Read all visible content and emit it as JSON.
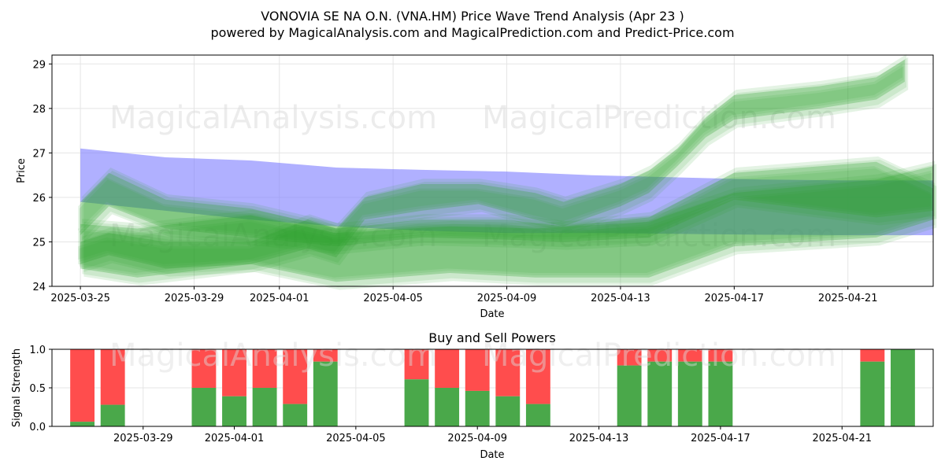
{
  "header": {
    "title": "VONOVIA SE NA O.N. (VNA.HM) Price Wave Trend Analysis (Apr 23 )",
    "subtitle": "powered by MagicalAnalysis.com and MagicalPrediction.com and Predict-Price.com"
  },
  "watermarks": [
    "MagicalAnalysis.com",
    "MagicalPrediction.com"
  ],
  "colors": {
    "green": "#2ca02c",
    "blue": "#7f7fff",
    "buy": "#4aa84a",
    "sell": "#ff4d4d"
  },
  "chart_data": [
    {
      "type": "area",
      "title": "",
      "xlabel": "Date",
      "ylabel": "Price",
      "x_range": [
        "2025-03-24",
        "2025-04-24"
      ],
      "ylim": [
        24,
        29.2
      ],
      "y_ticks": [
        24,
        25,
        26,
        27,
        28,
        29
      ],
      "x_ticks": [
        "2025-03-25",
        "2025-03-29",
        "2025-04-01",
        "2025-04-05",
        "2025-04-09",
        "2025-04-13",
        "2025-04-17",
        "2025-04-21"
      ],
      "grid": true,
      "blue_band": {
        "x": [
          "2025-03-25",
          "2025-03-28",
          "2025-03-31",
          "2025-04-03",
          "2025-04-06",
          "2025-04-09",
          "2025-04-12",
          "2025-04-15",
          "2025-04-18",
          "2025-04-21",
          "2025-04-24"
        ],
        "upper": [
          27.1,
          26.9,
          26.83,
          26.67,
          26.62,
          26.58,
          26.5,
          26.45,
          26.4,
          26.38,
          26.38
        ],
        "lower": [
          25.9,
          25.7,
          25.5,
          25.35,
          25.25,
          25.2,
          25.2,
          25.18,
          25.16,
          25.15,
          25.15
        ]
      },
      "green_bands": [
        {
          "x": [
            "2025-03-25",
            "2025-03-26",
            "2025-03-28",
            "2025-03-31",
            "2025-04-03",
            "2025-04-06",
            "2025-04-09",
            "2025-04-11",
            "2025-04-14",
            "2025-04-17",
            "2025-04-22",
            "2025-04-24"
          ],
          "upper": [
            25.9,
            26.55,
            25.95,
            25.75,
            25.3,
            25.5,
            25.5,
            25.35,
            25.55,
            26.55,
            26.8,
            26.2
          ],
          "lower": [
            25.15,
            25.8,
            25.3,
            25.1,
            24.9,
            25.1,
            25.05,
            25.0,
            25.1,
            25.95,
            25.55,
            25.7
          ]
        },
        {
          "x": [
            "2025-03-25",
            "2025-03-26",
            "2025-03-28",
            "2025-03-31",
            "2025-04-02",
            "2025-04-03",
            "2025-04-04",
            "2025-04-06",
            "2025-04-08",
            "2025-04-10",
            "2025-04-11",
            "2025-04-13",
            "2025-04-14",
            "2025-04-15",
            "2025-04-16",
            "2025-04-17",
            "2025-04-20",
            "2025-04-22",
            "2025-04-23"
          ],
          "upper": [
            25.0,
            25.2,
            25.0,
            25.0,
            25.5,
            25.3,
            26.0,
            26.3,
            26.3,
            26.1,
            25.9,
            26.3,
            26.6,
            27.1,
            27.8,
            28.3,
            28.5,
            28.7,
            29.1
          ],
          "lower": [
            24.5,
            24.7,
            24.4,
            24.5,
            24.85,
            24.65,
            25.5,
            25.7,
            25.85,
            25.5,
            25.35,
            25.8,
            26.1,
            26.7,
            27.35,
            27.75,
            28.0,
            28.2,
            28.6
          ]
        },
        {
          "x": [
            "2025-03-25",
            "2025-03-27",
            "2025-03-31",
            "2025-04-03",
            "2025-04-07",
            "2025-04-10",
            "2025-04-14",
            "2025-04-17",
            "2025-04-22",
            "2025-04-24"
          ],
          "upper": [
            25.4,
            25.3,
            25.6,
            25.2,
            25.35,
            25.3,
            25.45,
            26.1,
            26.4,
            26.7
          ],
          "lower": [
            24.4,
            24.2,
            24.5,
            24.1,
            24.3,
            24.2,
            24.2,
            24.9,
            25.1,
            25.5
          ]
        }
      ]
    },
    {
      "type": "bar",
      "title": "Buy and Sell Powers",
      "xlabel": "Date",
      "ylabel": "Signal Strength",
      "ylim": [
        0,
        1
      ],
      "y_ticks": [
        "0.0",
        "0.5",
        "1.0"
      ],
      "x_ticks": [
        "2025-03-29",
        "2025-04-01",
        "2025-04-05",
        "2025-04-09",
        "2025-04-13",
        "2025-04-17",
        "2025-04-21"
      ],
      "x_range": [
        "2025-03-26",
        "2025-04-24"
      ],
      "series": [
        {
          "name": "Buy",
          "color": "#4aa84a"
        },
        {
          "name": "Sell",
          "color": "#ff4d4d"
        }
      ],
      "bars": [
        {
          "date": "2025-03-27",
          "buy": 0.06
        },
        {
          "date": "2025-03-28",
          "buy": 0.28
        },
        {
          "date": "2025-03-31",
          "buy": 0.5
        },
        {
          "date": "2025-04-01",
          "buy": 0.39
        },
        {
          "date": "2025-04-02",
          "buy": 0.5
        },
        {
          "date": "2025-04-03",
          "buy": 0.29
        },
        {
          "date": "2025-04-04",
          "buy": 0.84
        },
        {
          "date": "2025-04-07",
          "buy": 0.61
        },
        {
          "date": "2025-04-08",
          "buy": 0.5
        },
        {
          "date": "2025-04-09",
          "buy": 0.46
        },
        {
          "date": "2025-04-10",
          "buy": 0.39
        },
        {
          "date": "2025-04-11",
          "buy": 0.29
        },
        {
          "date": "2025-04-14",
          "buy": 0.79
        },
        {
          "date": "2025-04-15",
          "buy": 0.84
        },
        {
          "date": "2025-04-16",
          "buy": 0.84
        },
        {
          "date": "2025-04-17",
          "buy": 0.84
        },
        {
          "date": "2025-04-22",
          "buy": 0.84
        },
        {
          "date": "2025-04-23",
          "buy": 1.0
        }
      ]
    }
  ]
}
